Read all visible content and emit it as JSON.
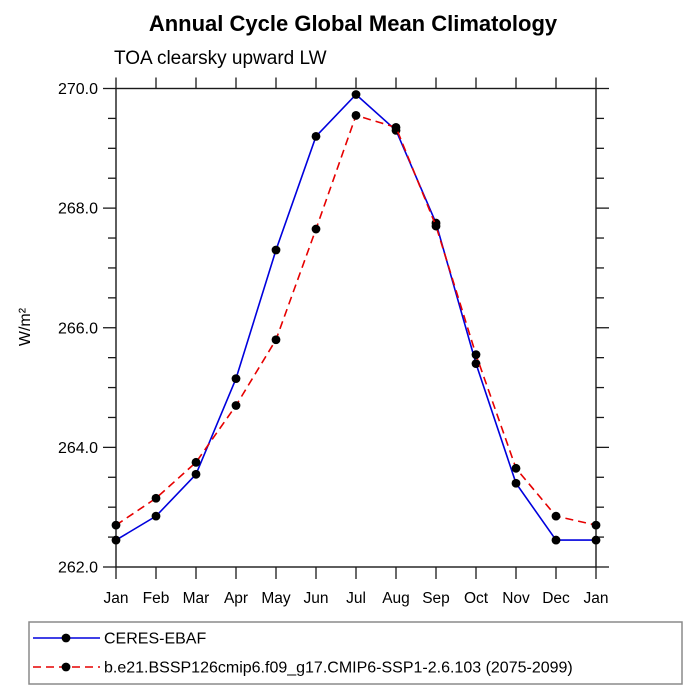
{
  "colors": {
    "background": "#ffffff",
    "axis": "#1a1a1a",
    "text": "#000000",
    "marker": "#000000",
    "series_blue": "#0000dd",
    "series_red": "#e60000",
    "legend_border": "#8a8a8a"
  },
  "chart_data": {
    "type": "line",
    "title": "Annual Cycle Global Mean Climatology",
    "subtitle": "TOA clearsky upward LW",
    "ylabel": "W/m²",
    "xlabel": "",
    "categories": [
      "Jan",
      "Feb",
      "Mar",
      "Apr",
      "May",
      "Jun",
      "Jul",
      "Aug",
      "Sep",
      "Oct",
      "Nov",
      "Dec",
      "Jan"
    ],
    "ylim": [
      262.0,
      270.0
    ],
    "ytick_major_labels": [
      "262.0",
      "264.0",
      "266.0",
      "268.0",
      "270.0"
    ],
    "ytick_major_values": [
      262.0,
      264.0,
      266.0,
      268.0,
      270.0
    ],
    "ytick_minor_step": 0.5,
    "grid": false,
    "legend_position": "bottom-left-box",
    "series": [
      {
        "name": "CERES-EBAF",
        "color": "#0000dd",
        "line_style": "solid",
        "marker": "filled-circle",
        "marker_color": "#000000",
        "values": [
          262.45,
          262.85,
          263.55,
          265.15,
          267.3,
          269.2,
          269.9,
          269.3,
          267.75,
          265.4,
          263.4,
          262.45,
          262.45
        ]
      },
      {
        "name": "b.e21.BSSP126cmip6.f09_g17.CMIP6-SSP1-2.6.103 (2075-2099)",
        "color": "#e60000",
        "line_style": "dashed",
        "marker": "filled-circle",
        "marker_color": "#000000",
        "values": [
          262.7,
          263.15,
          263.75,
          264.7,
          265.8,
          267.65,
          269.55,
          269.35,
          267.7,
          265.55,
          263.65,
          262.85,
          262.7
        ]
      }
    ]
  }
}
